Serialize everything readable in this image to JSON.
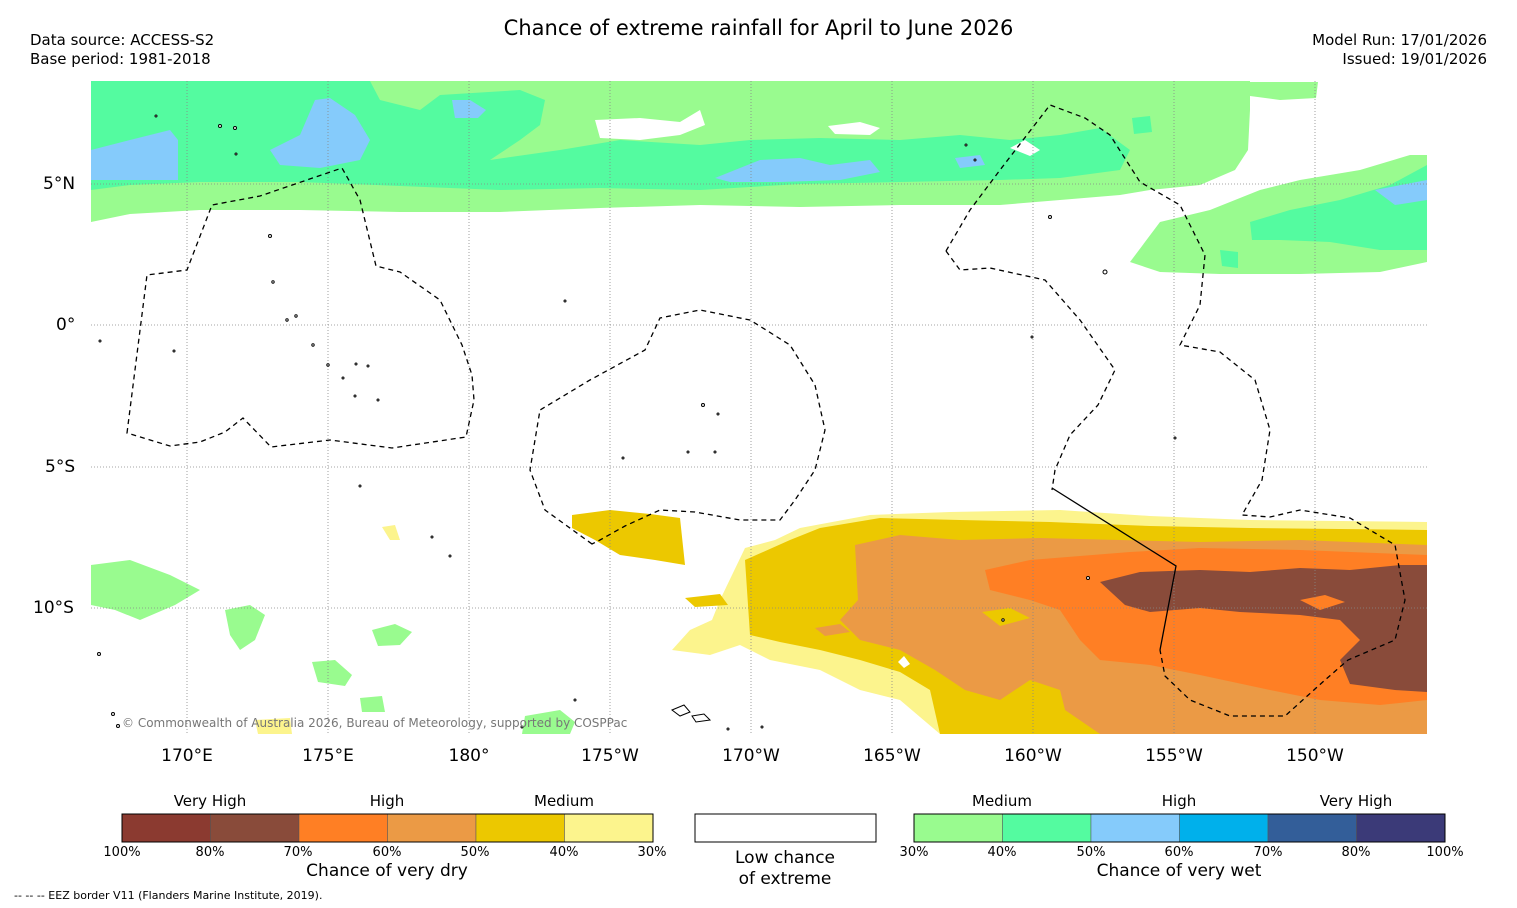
{
  "header": {
    "title": "Chance of extreme rainfall for April to June 2026",
    "data_source": "Data source: ACCESS-S2",
    "base_period": "Base period: 1981-2018",
    "model_run": "Model Run: 17/01/2026",
    "issued": "Issued: 19/01/2026"
  },
  "map": {
    "lat_labels": [
      "5°N",
      "0°",
      "5°S",
      "10°S"
    ],
    "lon_labels": [
      "170°E",
      "175°E",
      "180°",
      "175°W",
      "170°W",
      "165°W",
      "160°W",
      "155°W",
      "150°W"
    ],
    "copyright": "© Commonwealth of Australia 2026, Bureau of Meteorology, supported by COSPPac"
  },
  "legend": {
    "dry": {
      "headings": [
        "Very High",
        "High",
        "Medium"
      ],
      "colors": [
        "#8b3a30",
        "#894b3a",
        "#ff7f24",
        "#eb9a45",
        "#ecc800",
        "#fcf48d"
      ],
      "ticks": [
        "100%",
        "80%",
        "70%",
        "60%",
        "50%",
        "40%",
        "30%"
      ],
      "caption": "Chance of very dry"
    },
    "low": {
      "caption_line1": "Low chance",
      "caption_line2": "of extreme"
    },
    "wet": {
      "headings": [
        "Medium",
        "High",
        "Very High"
      ],
      "colors": [
        "#99fb8f",
        "#54fba0",
        "#85cbfb",
        "#00b0eb",
        "#335e99",
        "#3b3a78"
      ],
      "ticks": [
        "30%",
        "40%",
        "50%",
        "60%",
        "70%",
        "80%",
        "100%"
      ],
      "caption": "Chance of very wet"
    }
  },
  "footer": {
    "eez_note": "--  --  -- EEZ border V11 (Flanders Marine Institute, 2019)."
  }
}
